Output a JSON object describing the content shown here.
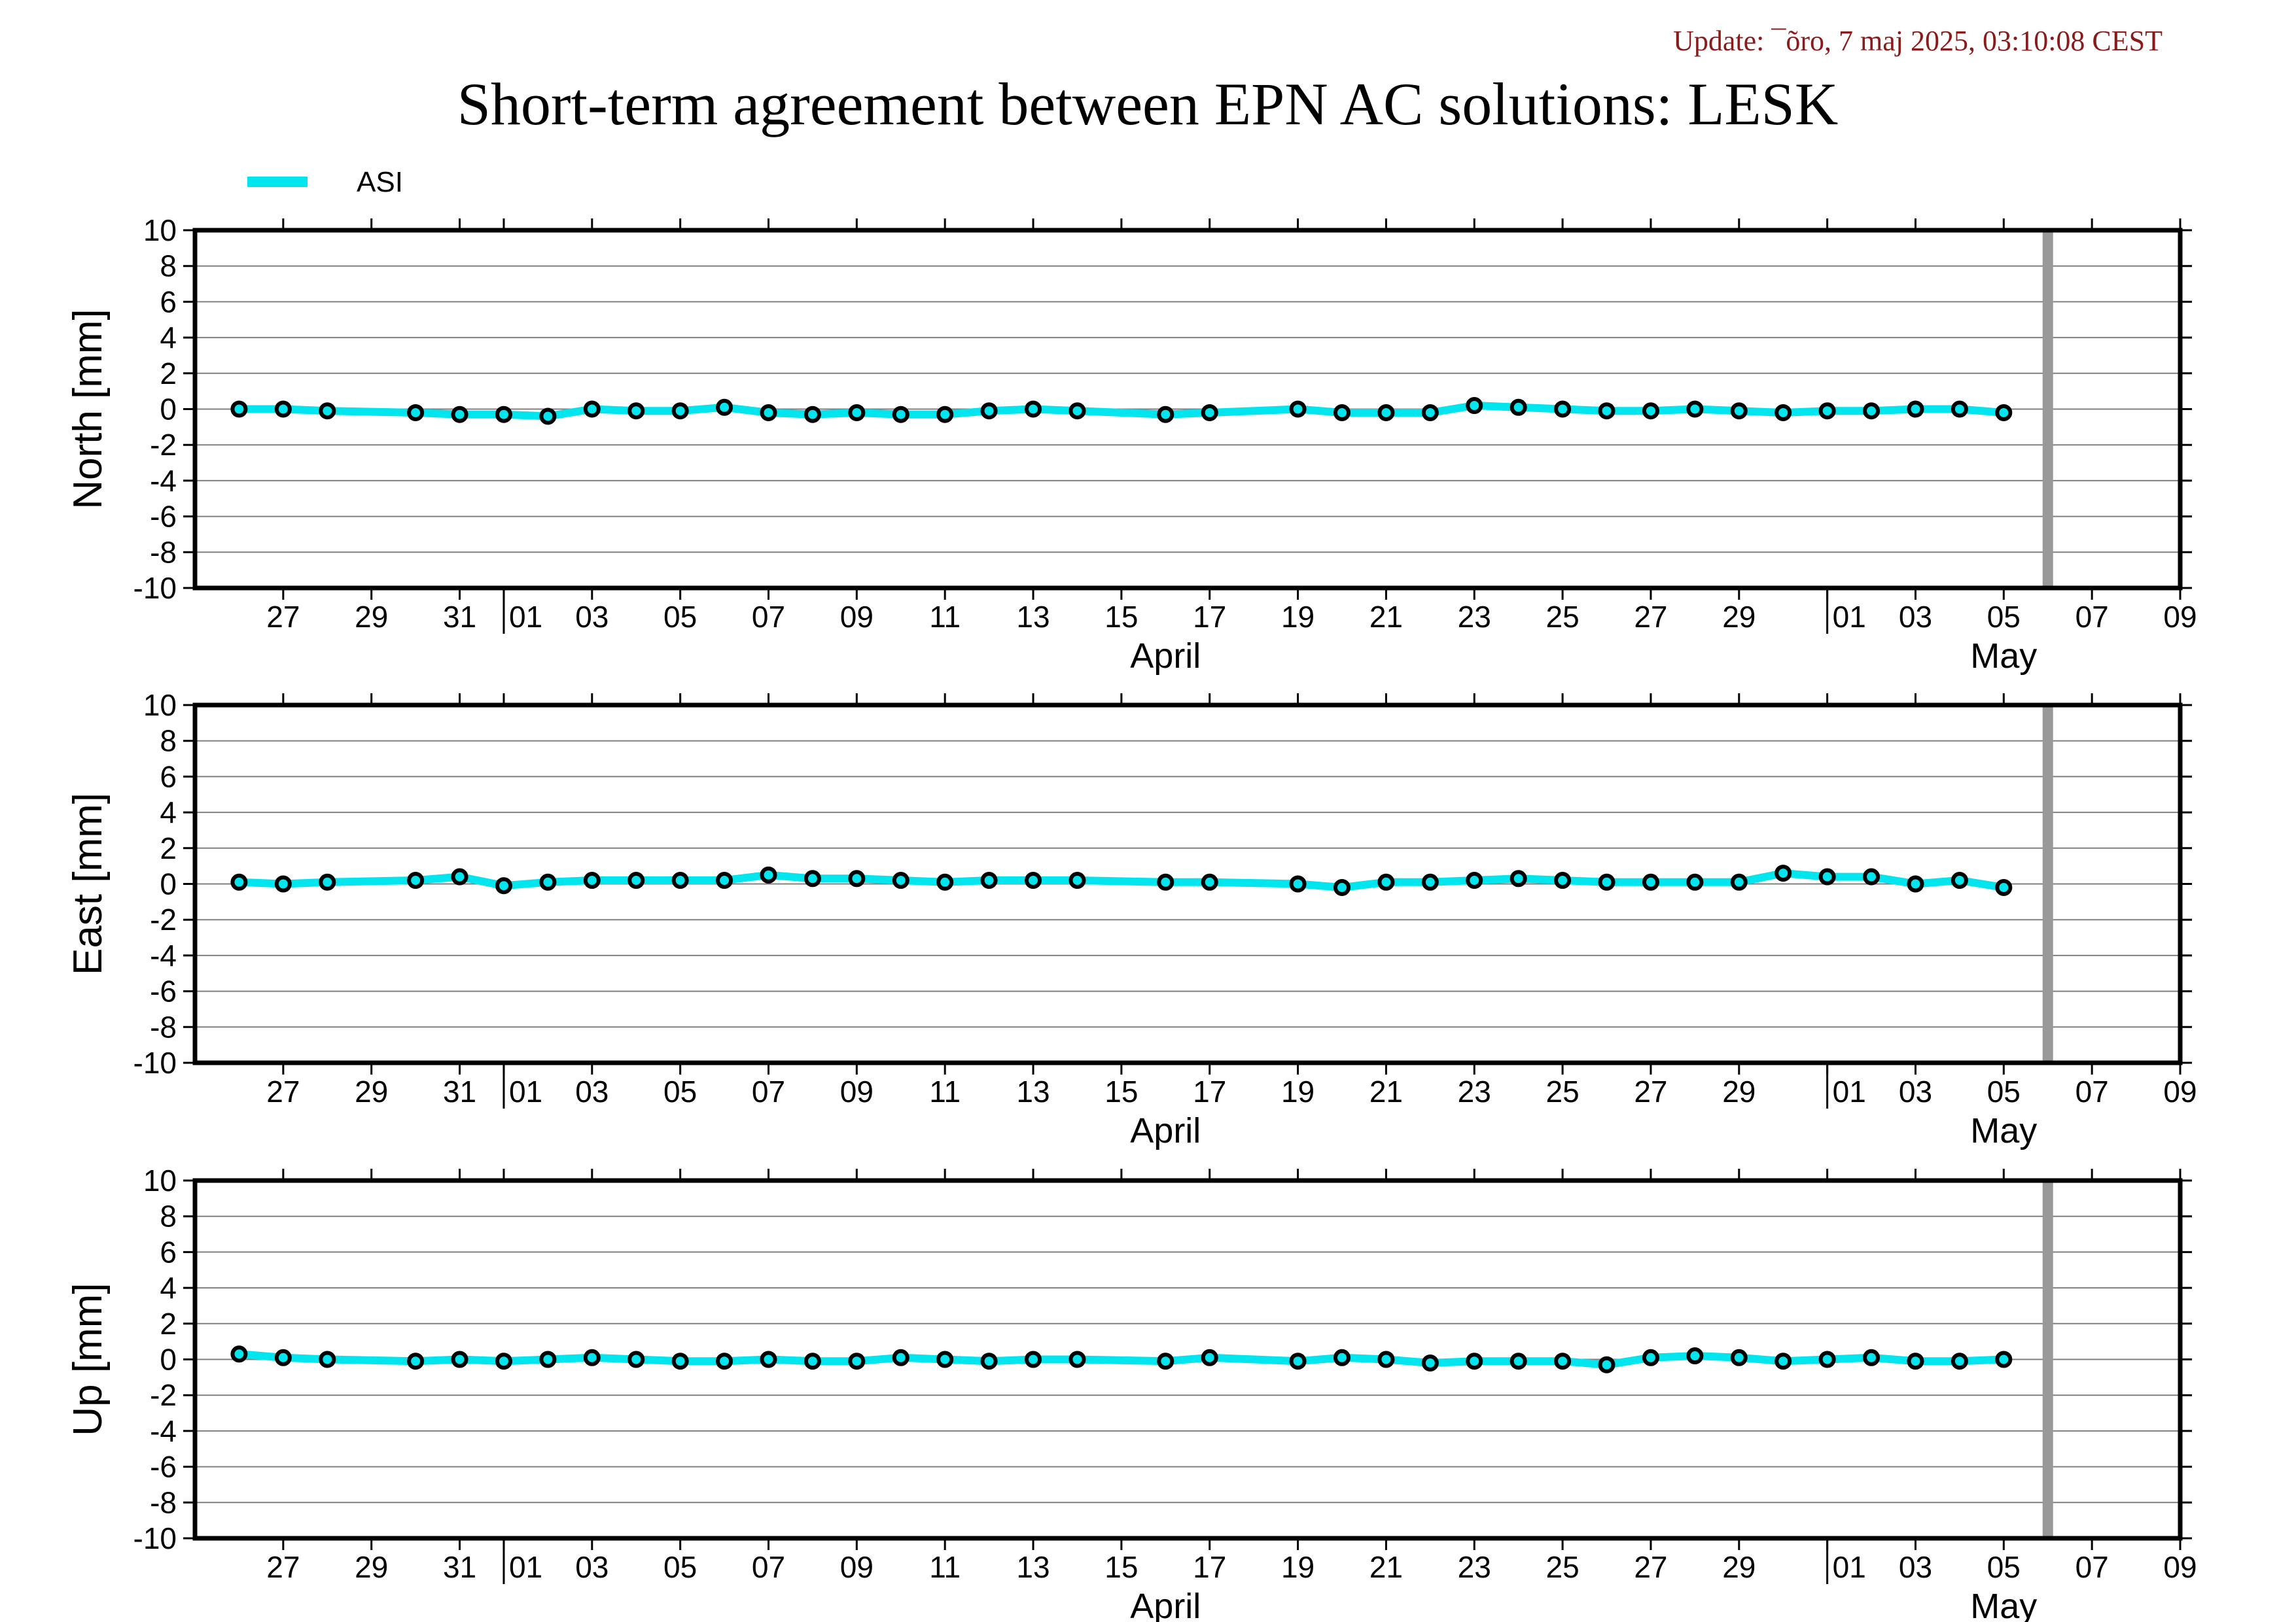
{
  "update_text": "Update: ¯õro, 7 maj 2025, 03:10:08 CEST",
  "title": "Short-term agreement between EPN AC solutions: LESK",
  "legend": [
    {
      "label": "ASI",
      "color": "#00e5ee"
    }
  ],
  "colors": {
    "series": "#00e5ee",
    "marker_edge": "#000000",
    "marker_fill": "#00e5ee",
    "future_band": "#999999"
  },
  "chart_data": {
    "type": "line",
    "date_range": [
      "2025-03-25",
      "2025-05-09"
    ],
    "x_tick_labels": [
      "27",
      "29",
      "31",
      "01",
      "03",
      "05",
      "07",
      "09",
      "11",
      "13",
      "15",
      "17",
      "19",
      "21",
      "23",
      "25",
      "27",
      "29",
      "01",
      "03",
      "05",
      "07",
      "09"
    ],
    "x_tick_dates": [
      "2025-03-27",
      "2025-03-29",
      "2025-03-31",
      "2025-04-01",
      "2025-04-03",
      "2025-04-05",
      "2025-04-07",
      "2025-04-09",
      "2025-04-11",
      "2025-04-13",
      "2025-04-15",
      "2025-04-17",
      "2025-04-19",
      "2025-04-21",
      "2025-04-23",
      "2025-04-25",
      "2025-04-27",
      "2025-04-29",
      "2025-05-01",
      "2025-05-03",
      "2025-05-05",
      "2025-05-07",
      "2025-05-09"
    ],
    "months": [
      {
        "label": "April",
        "date": "2025-04-16"
      },
      {
        "label": "May",
        "date": "2025-05-05"
      }
    ],
    "month_boundaries": [
      "2025-04-01",
      "2025-05-01"
    ],
    "future_marker_date": "2025-05-06",
    "ylim": [
      -10,
      10
    ],
    "y_ticks": [
      10,
      8,
      6,
      4,
      2,
      0,
      -2,
      -4,
      -6,
      -8,
      -10
    ],
    "grid": true,
    "legend_placement": "top-left",
    "x": [
      "2025-03-26",
      "2025-03-27",
      "2025-03-28",
      "2025-03-30",
      "2025-03-31",
      "2025-04-01",
      "2025-04-02",
      "2025-04-03",
      "2025-04-04",
      "2025-04-05",
      "2025-04-06",
      "2025-04-07",
      "2025-04-08",
      "2025-04-09",
      "2025-04-10",
      "2025-04-11",
      "2025-04-12",
      "2025-04-13",
      "2025-04-14",
      "2025-04-16",
      "2025-04-17",
      "2025-04-19",
      "2025-04-20",
      "2025-04-21",
      "2025-04-22",
      "2025-04-23",
      "2025-04-24",
      "2025-04-25",
      "2025-04-26",
      "2025-04-27",
      "2025-04-28",
      "2025-04-29",
      "2025-04-30",
      "2025-05-01",
      "2025-05-02",
      "2025-05-03",
      "2025-05-04",
      "2025-05-05"
    ],
    "panels": [
      {
        "ylabel": "North [mm]",
        "series": [
          {
            "name": "ASI",
            "values": [
              0.0,
              0.0,
              -0.1,
              -0.2,
              -0.3,
              -0.3,
              -0.4,
              0.0,
              -0.1,
              -0.1,
              0.1,
              -0.2,
              -0.3,
              -0.2,
              -0.3,
              -0.3,
              -0.1,
              0.0,
              -0.1,
              -0.3,
              -0.2,
              0.0,
              -0.2,
              -0.2,
              -0.2,
              0.2,
              0.1,
              0.0,
              -0.1,
              -0.1,
              0.0,
              -0.1,
              -0.2,
              -0.1,
              -0.1,
              0.0,
              0.0,
              -0.2
            ]
          }
        ]
      },
      {
        "ylabel": "East [mm]",
        "series": [
          {
            "name": "ASI",
            "values": [
              0.1,
              0.0,
              0.1,
              0.2,
              0.4,
              -0.1,
              0.1,
              0.2,
              0.2,
              0.2,
              0.2,
              0.5,
              0.3,
              0.3,
              0.2,
              0.1,
              0.2,
              0.2,
              0.2,
              0.1,
              0.1,
              0.0,
              -0.2,
              0.1,
              0.1,
              0.2,
              0.3,
              0.2,
              0.1,
              0.1,
              0.1,
              0.1,
              0.6,
              0.4,
              0.4,
              0.0,
              0.2,
              -0.2
            ]
          }
        ]
      },
      {
        "ylabel": "Up [mm]",
        "series": [
          {
            "name": "ASI",
            "values": [
              0.3,
              0.1,
              0.0,
              -0.1,
              0.0,
              -0.1,
              0.0,
              0.1,
              0.0,
              -0.1,
              -0.1,
              0.0,
              -0.1,
              -0.1,
              0.1,
              0.0,
              -0.1,
              0.0,
              0.0,
              -0.1,
              0.1,
              -0.1,
              0.1,
              0.0,
              -0.2,
              -0.1,
              -0.1,
              -0.1,
              -0.3,
              0.1,
              0.2,
              0.1,
              -0.1,
              0.0,
              0.1,
              -0.1,
              -0.1,
              0.0
            ]
          }
        ]
      }
    ]
  }
}
